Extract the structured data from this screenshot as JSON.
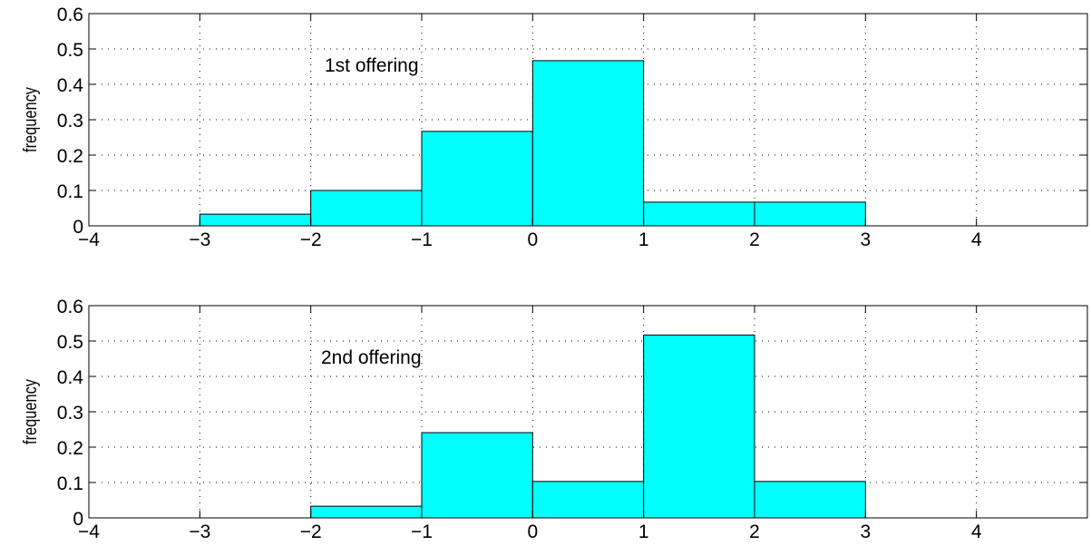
{
  "chart_data": [
    {
      "type": "bar",
      "histogram": true,
      "bin_edges": [
        -3,
        -2,
        -1,
        0,
        1,
        2,
        3
      ],
      "values": [
        0.033,
        0.1,
        0.267,
        0.467,
        0.067,
        0.067
      ],
      "annotation": "1st offering",
      "title": "",
      "xlabel": "",
      "ylabel": "frequency",
      "xlim": [
        -4,
        5
      ],
      "ylim": [
        0,
        0.6
      ],
      "xticks": [
        -4,
        -3,
        -2,
        -1,
        0,
        1,
        2,
        3,
        4
      ],
      "xtick_labels": [
        "−4",
        "−3",
        "−2",
        "−1",
        "0",
        "1",
        "2",
        "3",
        "4"
      ],
      "yticks": [
        0,
        0.1,
        0.2,
        0.3,
        0.4,
        0.5,
        0.6
      ],
      "ytick_labels": [
        "0",
        "0.1",
        "0.2",
        "0.3",
        "0.4",
        "0.5",
        "0.6"
      ],
      "grid": true,
      "bar_color": "#00ffff"
    },
    {
      "type": "bar",
      "histogram": true,
      "bin_edges": [
        -2,
        -1,
        0,
        1,
        2,
        3
      ],
      "values": [
        0.033,
        0.241,
        0.103,
        0.517,
        0.103
      ],
      "annotation": "2nd offering",
      "title": "",
      "xlabel": "",
      "ylabel": "frequency",
      "xlim": [
        -4,
        5
      ],
      "ylim": [
        0,
        0.6
      ],
      "xticks": [
        -4,
        -3,
        -2,
        -1,
        0,
        1,
        2,
        3,
        4
      ],
      "xtick_labels": [
        "−4",
        "−3",
        "−2",
        "−1",
        "0",
        "1",
        "2",
        "3",
        "4"
      ],
      "yticks": [
        0,
        0.1,
        0.2,
        0.3,
        0.4,
        0.5,
        0.6
      ],
      "ytick_labels": [
        "0",
        "0.1",
        "0.2",
        "0.3",
        "0.4",
        "0.5",
        "0.6"
      ],
      "grid": true,
      "bar_color": "#00ffff"
    }
  ]
}
